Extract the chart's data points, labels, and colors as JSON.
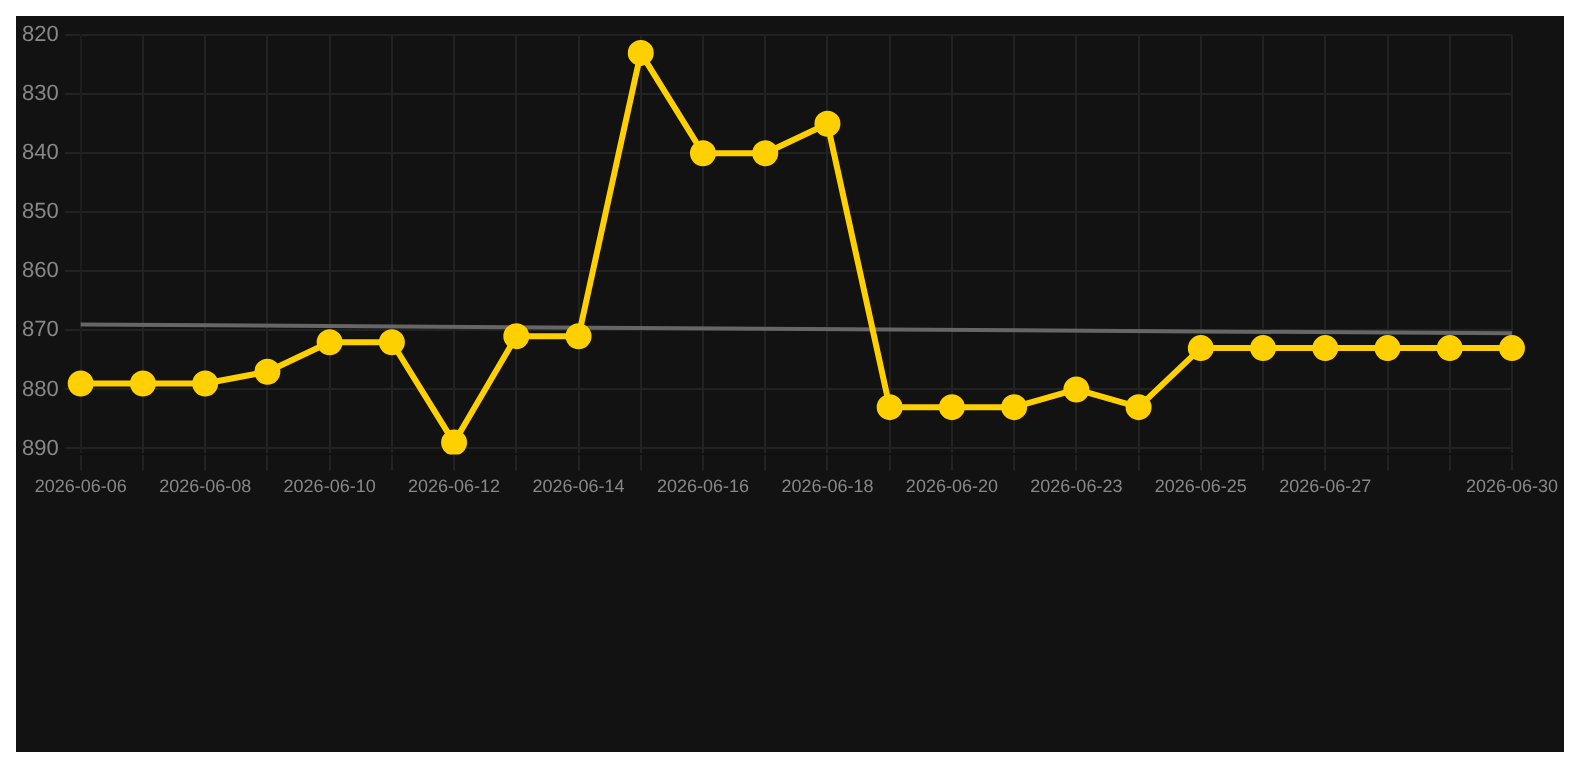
{
  "chart_data": {
    "type": "line",
    "categories": [
      "2026-06-06",
      null,
      "2026-06-08",
      null,
      "2026-06-10",
      null,
      "2026-06-12",
      null,
      "2026-06-14",
      null,
      "2026-06-16",
      null,
      "2026-06-18",
      null,
      "2026-06-20",
      null,
      "2026-06-23",
      null,
      "2026-06-25",
      null,
      "2026-06-27",
      null,
      null,
      "2026-06-30"
    ],
    "series": [
      {
        "color": "#ffd000",
        "marker": "circle",
        "values": [
          879,
          879,
          879,
          877,
          872,
          872,
          889,
          871,
          871,
          823,
          840,
          840,
          835,
          883,
          883,
          883,
          880,
          883,
          873,
          873,
          873,
          873,
          873,
          873
        ]
      },
      {
        "color": "#666666",
        "marker": "none",
        "values": [
          869,
          null,
          null,
          null,
          null,
          null,
          null,
          null,
          null,
          null,
          null,
          null,
          null,
          null,
          null,
          null,
          null,
          null,
          null,
          null,
          null,
          null,
          null,
          870.5
        ]
      }
    ],
    "ylim": [
      891,
      820
    ],
    "yticks": [
      820,
      830,
      840,
      850,
      860,
      870,
      880,
      890
    ],
    "grid": true
  }
}
